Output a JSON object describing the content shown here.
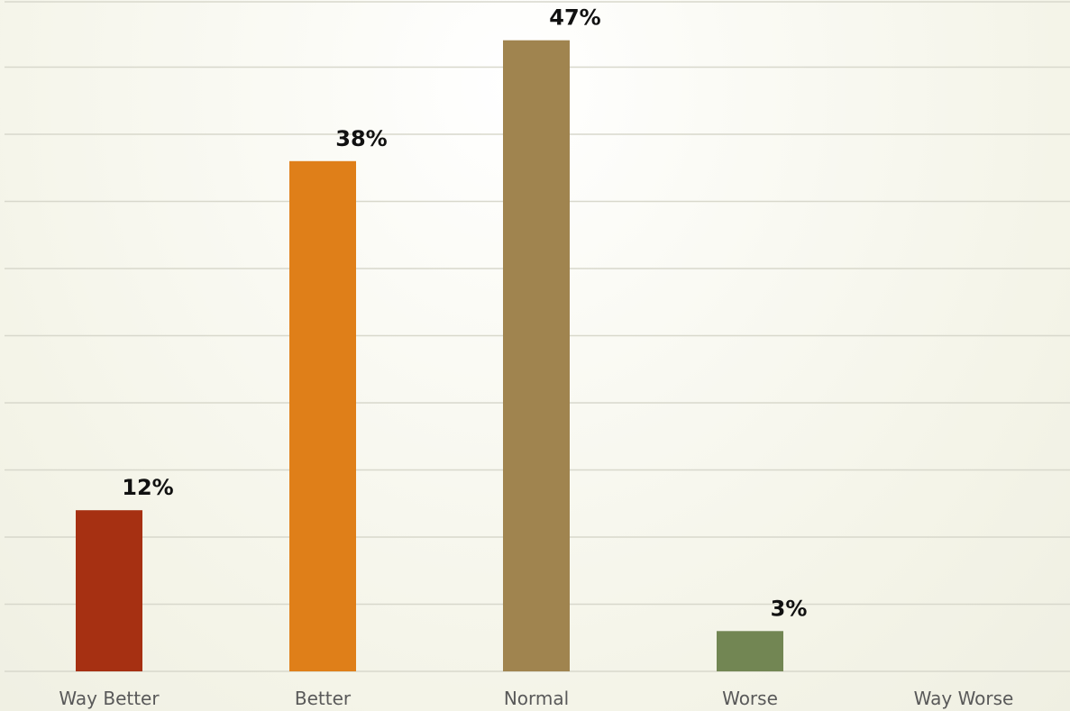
{
  "chart_data": {
    "type": "bar",
    "categories": [
      "Way Better",
      "Better",
      "Normal",
      "Worse",
      "Way Worse"
    ],
    "values": [
      12,
      38,
      47,
      3,
      null
    ],
    "data_labels": [
      "12%",
      "38%",
      "47%",
      "3%",
      ""
    ],
    "ylim": [
      0,
      50
    ],
    "y_gridline_step": 5,
    "grid": true,
    "legend": "none",
    "title": "",
    "xlabel": "",
    "ylabel": "",
    "colors": [
      "#a63012",
      "#df7f19",
      "#a0844f",
      "#728653",
      "#4f6f8f"
    ]
  }
}
